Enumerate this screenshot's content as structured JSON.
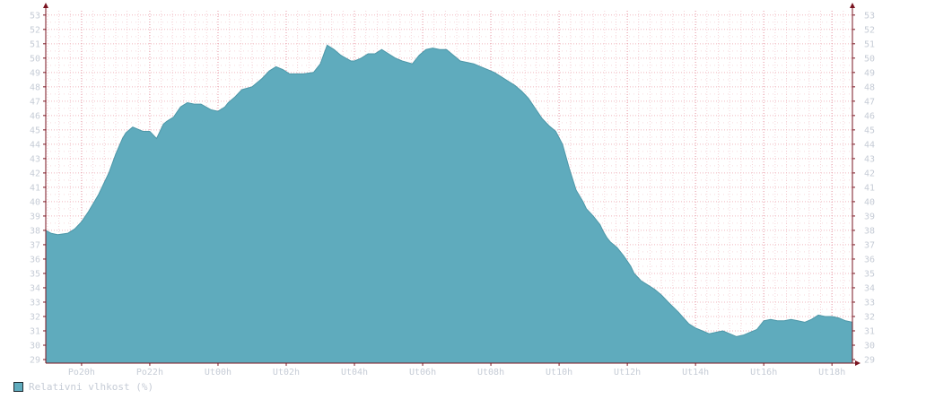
{
  "chart_data": {
    "type": "area",
    "title": "",
    "xlabel": "",
    "ylabel": "",
    "ylim": [
      28.75,
      53.3
    ],
    "y_ticks": [
      29,
      30,
      31,
      32,
      33,
      34,
      35,
      36,
      37,
      38,
      39,
      40,
      41,
      42,
      43,
      44,
      45,
      46,
      47,
      48,
      49,
      50,
      51,
      52,
      53
    ],
    "x_ticks": [
      {
        "hour": 20,
        "label": "Po20h"
      },
      {
        "hour": 22,
        "label": "Po22h"
      },
      {
        "hour": 24,
        "label": "Ut00h"
      },
      {
        "hour": 26,
        "label": "Ut02h"
      },
      {
        "hour": 28,
        "label": "Ut04h"
      },
      {
        "hour": 30,
        "label": "Ut06h"
      },
      {
        "hour": 32,
        "label": "Ut08h"
      },
      {
        "hour": 34,
        "label": "Ut10h"
      },
      {
        "hour": 36,
        "label": "Ut12h"
      },
      {
        "hour": 38,
        "label": "Ut14h"
      },
      {
        "hour": 40,
        "label": "Ut16h"
      },
      {
        "hour": 42,
        "label": "Ut18h"
      }
    ],
    "xlim": [
      18.95,
      42.6
    ],
    "grid": true,
    "colors": {
      "fill": "#5fabbd",
      "line": "#4d97a8",
      "grid": "#f0b7bf",
      "axis": "#7a1420"
    },
    "series": [
      {
        "name": "Relativni vlhkost (%)",
        "x": [
          18.95,
          19.1,
          19.3,
          19.6,
          19.8,
          20.0,
          20.2,
          20.5,
          20.8,
          21.0,
          21.2,
          21.3,
          21.5,
          21.8,
          22.0,
          22.2,
          22.4,
          22.5,
          22.7,
          22.9,
          23.1,
          23.3,
          23.5,
          23.8,
          24.0,
          24.2,
          24.3,
          24.5,
          24.7,
          25.0,
          25.1,
          25.3,
          25.5,
          25.7,
          25.9,
          26.1,
          26.3,
          26.5,
          26.8,
          27.0,
          27.2,
          27.4,
          27.6,
          27.9,
          28.0,
          28.1,
          28.2,
          28.4,
          28.6,
          28.8,
          29.0,
          29.2,
          29.4,
          29.7,
          29.9,
          30.1,
          30.3,
          30.5,
          30.7,
          30.9,
          31.1,
          31.3,
          31.5,
          31.7,
          31.9,
          32.1,
          32.3,
          32.5,
          32.7,
          32.9,
          33.1,
          33.3,
          33.5,
          33.7,
          33.9,
          34.1,
          34.3,
          34.5,
          34.7,
          34.8,
          35.0,
          35.2,
          35.3,
          35.4,
          35.5,
          35.7,
          35.9,
          36.1,
          36.2,
          36.4,
          36.6,
          36.8,
          37.0,
          37.2,
          37.5,
          37.8,
          38.0,
          38.2,
          38.4,
          38.6,
          38.8,
          39.0,
          39.2,
          39.4,
          39.6,
          39.8,
          40.0,
          40.2,
          40.4,
          40.6,
          40.8,
          41.0,
          41.2,
          41.4,
          41.6,
          41.8,
          42.0,
          42.2,
          42.4,
          42.6
        ],
        "y": [
          38.0,
          37.8,
          37.7,
          37.8,
          38.1,
          38.6,
          39.3,
          40.5,
          42.0,
          43.3,
          44.4,
          44.8,
          45.2,
          44.9,
          44.9,
          44.4,
          45.4,
          45.6,
          45.9,
          46.6,
          46.9,
          46.8,
          46.8,
          46.4,
          46.3,
          46.6,
          46.9,
          47.3,
          47.8,
          48.0,
          48.2,
          48.6,
          49.1,
          49.4,
          49.2,
          48.9,
          48.9,
          48.9,
          49.0,
          49.6,
          50.9,
          50.6,
          50.2,
          49.8,
          49.8,
          49.9,
          50.0,
          50.3,
          50.3,
          50.6,
          50.3,
          50.0,
          49.8,
          49.6,
          50.2,
          50.6,
          50.7,
          50.6,
          50.6,
          50.2,
          49.8,
          49.7,
          49.6,
          49.4,
          49.2,
          49.0,
          48.7,
          48.4,
          48.1,
          47.7,
          47.2,
          46.5,
          45.8,
          45.3,
          44.9,
          44.0,
          42.3,
          40.8,
          40.0,
          39.5,
          39.0,
          38.4,
          37.9,
          37.5,
          37.2,
          36.8,
          36.2,
          35.5,
          35.0,
          34.5,
          34.2,
          33.9,
          33.5,
          33.0,
          32.3,
          31.5,
          31.2,
          31.0,
          30.8,
          30.9,
          31.0,
          30.8,
          30.6,
          30.7,
          30.9,
          31.1,
          31.7,
          31.8,
          31.7,
          31.7,
          31.8,
          31.7,
          31.6,
          31.8,
          32.1,
          32.0,
          32.0,
          31.9,
          31.7,
          31.6
        ]
      }
    ]
  },
  "legend": {
    "label": "Relativni vlhkost (%)",
    "color": "#5fabbd"
  }
}
